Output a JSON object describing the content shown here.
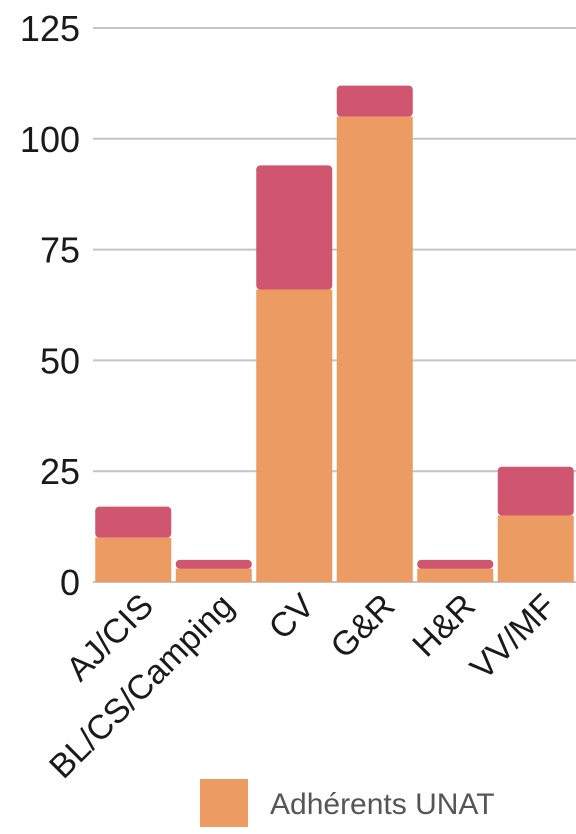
{
  "chart_data": {
    "type": "bar",
    "stacked": true,
    "categories": [
      "AJ/CIS",
      "BL/CS/Camping",
      "CV",
      "G&R",
      "H&R",
      "VV/MF"
    ],
    "series": [
      {
        "name": "Adhérents UNAT",
        "color": "#ec9b62",
        "values": [
          10,
          3,
          66,
          105,
          3,
          15
        ]
      },
      {
        "name": "",
        "color": "#cf566e",
        "values": [
          7,
          2,
          28,
          7,
          2,
          11
        ]
      }
    ],
    "yticks": [
      0,
      25,
      50,
      75,
      100,
      125
    ],
    "ylim": [
      0,
      125
    ],
    "grid": true,
    "legend": {
      "placement": "bottom-right",
      "entries": [
        "Adhérents UNAT"
      ]
    }
  }
}
